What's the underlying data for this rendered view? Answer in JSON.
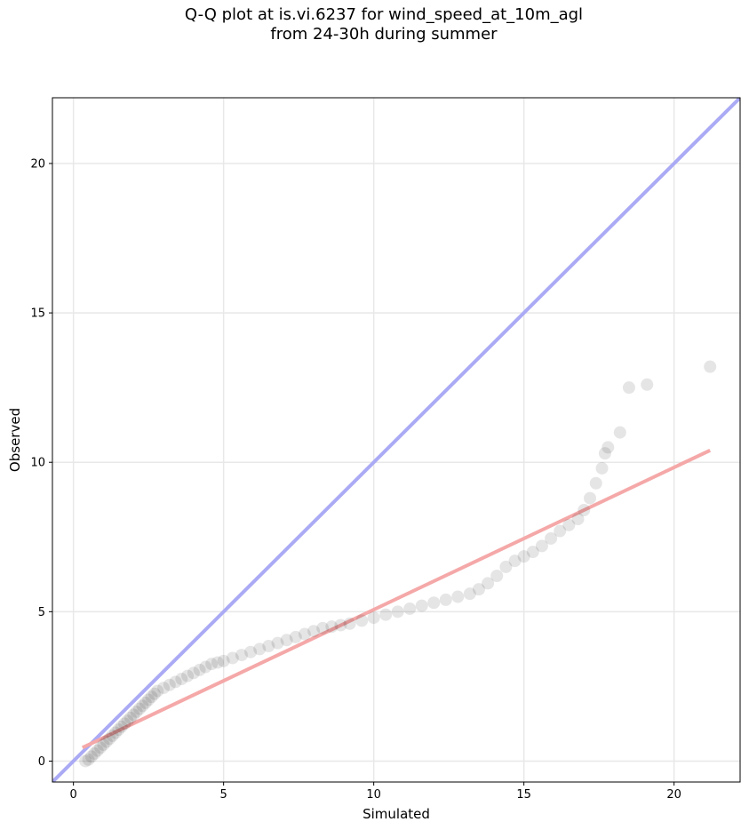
{
  "chart_data": {
    "type": "scatter",
    "title_line1": "Q-Q plot at is.vi.6237 for wind_speed_at_10m_agl",
    "title_line2": "from 24-30h during summer",
    "xlabel": "Simulated",
    "ylabel": "Observed",
    "xlim": [
      -0.7,
      22.2
    ],
    "ylim": [
      -0.7,
      22.2
    ],
    "xticks": [
      0,
      5,
      10,
      15,
      20
    ],
    "yticks": [
      0,
      5,
      10,
      15,
      20
    ],
    "x_tick_labels": [
      "0",
      "5",
      "10",
      "15",
      "20"
    ],
    "y_tick_labels": [
      "0",
      "5",
      "10",
      "15",
      "20"
    ],
    "grid": true,
    "colors": {
      "points": "#000000",
      "identity_line": "#aaaaf5",
      "fit_line": "#f5a8a8"
    },
    "identity_line": {
      "x": [
        -0.7,
        22.2
      ],
      "y": [
        -0.7,
        22.2
      ]
    },
    "fit_line": {
      "x": [
        0.3,
        21.2
      ],
      "y": [
        0.45,
        10.4
      ]
    },
    "points": {
      "x": [
        0.4,
        0.5,
        0.6,
        0.7,
        0.8,
        0.9,
        1.0,
        1.1,
        1.2,
        1.3,
        1.4,
        1.5,
        1.6,
        1.7,
        1.8,
        1.9,
        2.0,
        2.1,
        2.2,
        2.3,
        2.4,
        2.5,
        2.6,
        2.7,
        2.8,
        3.0,
        3.2,
        3.4,
        3.6,
        3.8,
        4.0,
        4.2,
        4.4,
        4.6,
        4.8,
        5.0,
        5.3,
        5.6,
        5.9,
        6.2,
        6.5,
        6.8,
        7.1,
        7.4,
        7.7,
        8.0,
        8.3,
        8.6,
        8.9,
        9.2,
        9.6,
        10.0,
        10.4,
        10.8,
        11.2,
        11.6,
        12.0,
        12.4,
        12.8,
        13.2,
        13.5,
        13.8,
        14.1,
        14.4,
        14.7,
        15.0,
        15.3,
        15.6,
        15.9,
        16.2,
        16.5,
        16.8,
        17.0,
        17.2,
        17.4,
        17.6,
        17.7,
        17.8,
        18.2,
        18.5,
        19.1,
        21.2
      ],
      "y": [
        0.0,
        0.05,
        0.15,
        0.25,
        0.35,
        0.45,
        0.55,
        0.65,
        0.75,
        0.85,
        0.95,
        1.05,
        1.15,
        1.25,
        1.35,
        1.45,
        1.55,
        1.65,
        1.75,
        1.85,
        1.95,
        2.05,
        2.15,
        2.25,
        2.35,
        2.45,
        2.55,
        2.65,
        2.75,
        2.85,
        2.95,
        3.05,
        3.15,
        3.25,
        3.3,
        3.35,
        3.45,
        3.55,
        3.65,
        3.75,
        3.85,
        3.95,
        4.05,
        4.15,
        4.25,
        4.35,
        4.45,
        4.5,
        4.55,
        4.6,
        4.7,
        4.8,
        4.9,
        5.0,
        5.1,
        5.2,
        5.3,
        5.4,
        5.5,
        5.6,
        5.75,
        5.95,
        6.2,
        6.5,
        6.7,
        6.85,
        7.0,
        7.2,
        7.45,
        7.7,
        7.9,
        8.1,
        8.4,
        8.8,
        9.3,
        9.8,
        10.3,
        10.5,
        11.0,
        12.5,
        12.6,
        13.2
      ]
    }
  }
}
